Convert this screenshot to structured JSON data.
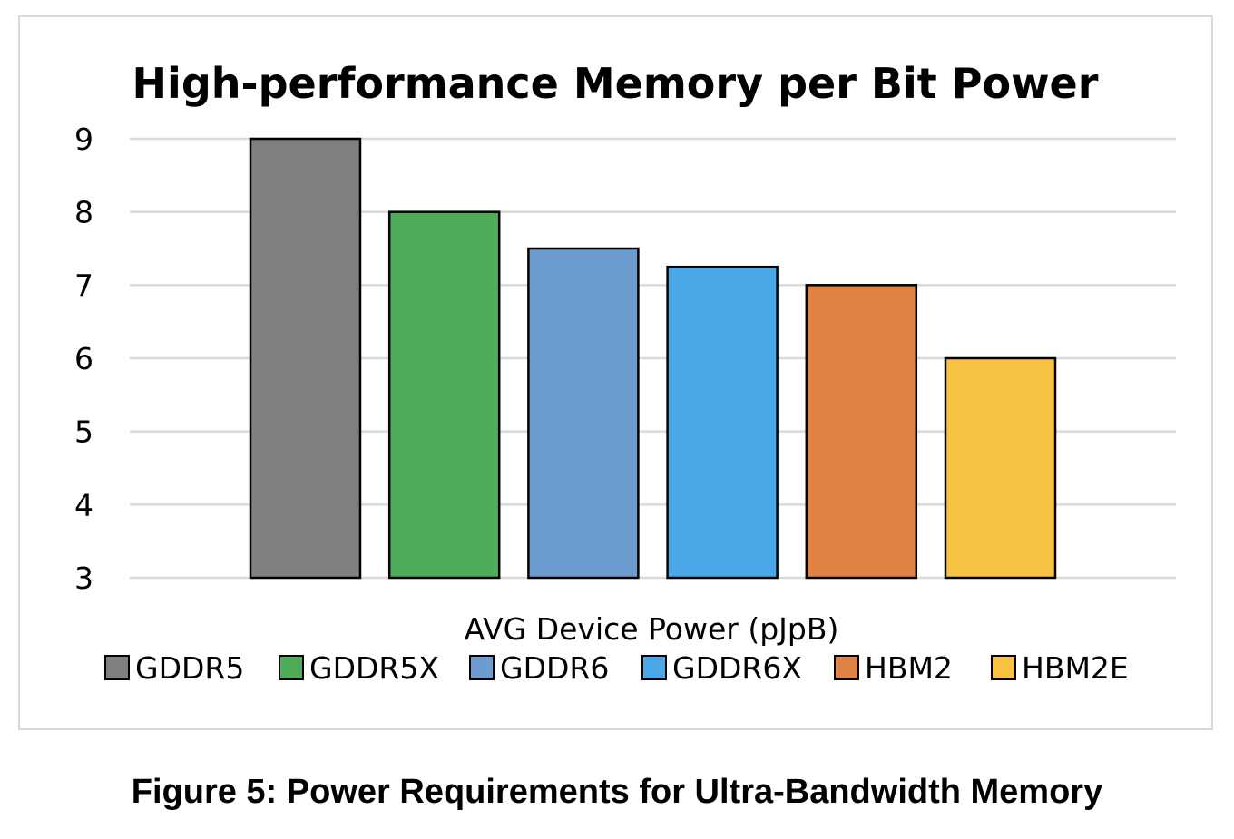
{
  "chart_data": {
    "type": "bar",
    "title": "High-performance Memory per Bit Power",
    "xlabel": "AVG Device Power (pJpB)",
    "ylabel": "",
    "ylim": [
      3,
      9
    ],
    "yticks": [
      3,
      4,
      5,
      6,
      7,
      8,
      9
    ],
    "grid": true,
    "legend_position": "bottom",
    "categories": [
      "AVG Device Power (pJpB)"
    ],
    "series": [
      {
        "name": "GDDR5",
        "values": [
          9
        ],
        "color": "#808080"
      },
      {
        "name": "GDDR5X",
        "values": [
          8
        ],
        "color": "#4fac5b"
      },
      {
        "name": "GDDR6",
        "values": [
          7.5
        ],
        "color": "#6b9dd1"
      },
      {
        "name": "GDDR6X",
        "values": [
          7.25
        ],
        "color": "#4aa8e8"
      },
      {
        "name": "HBM2",
        "values": [
          7
        ],
        "color": "#e08446"
      },
      {
        "name": "HBM2E",
        "values": [
          6
        ],
        "color": "#f5c244"
      }
    ]
  },
  "caption": "Figure 5: Power Requirements for Ultra-Bandwidth Memory"
}
